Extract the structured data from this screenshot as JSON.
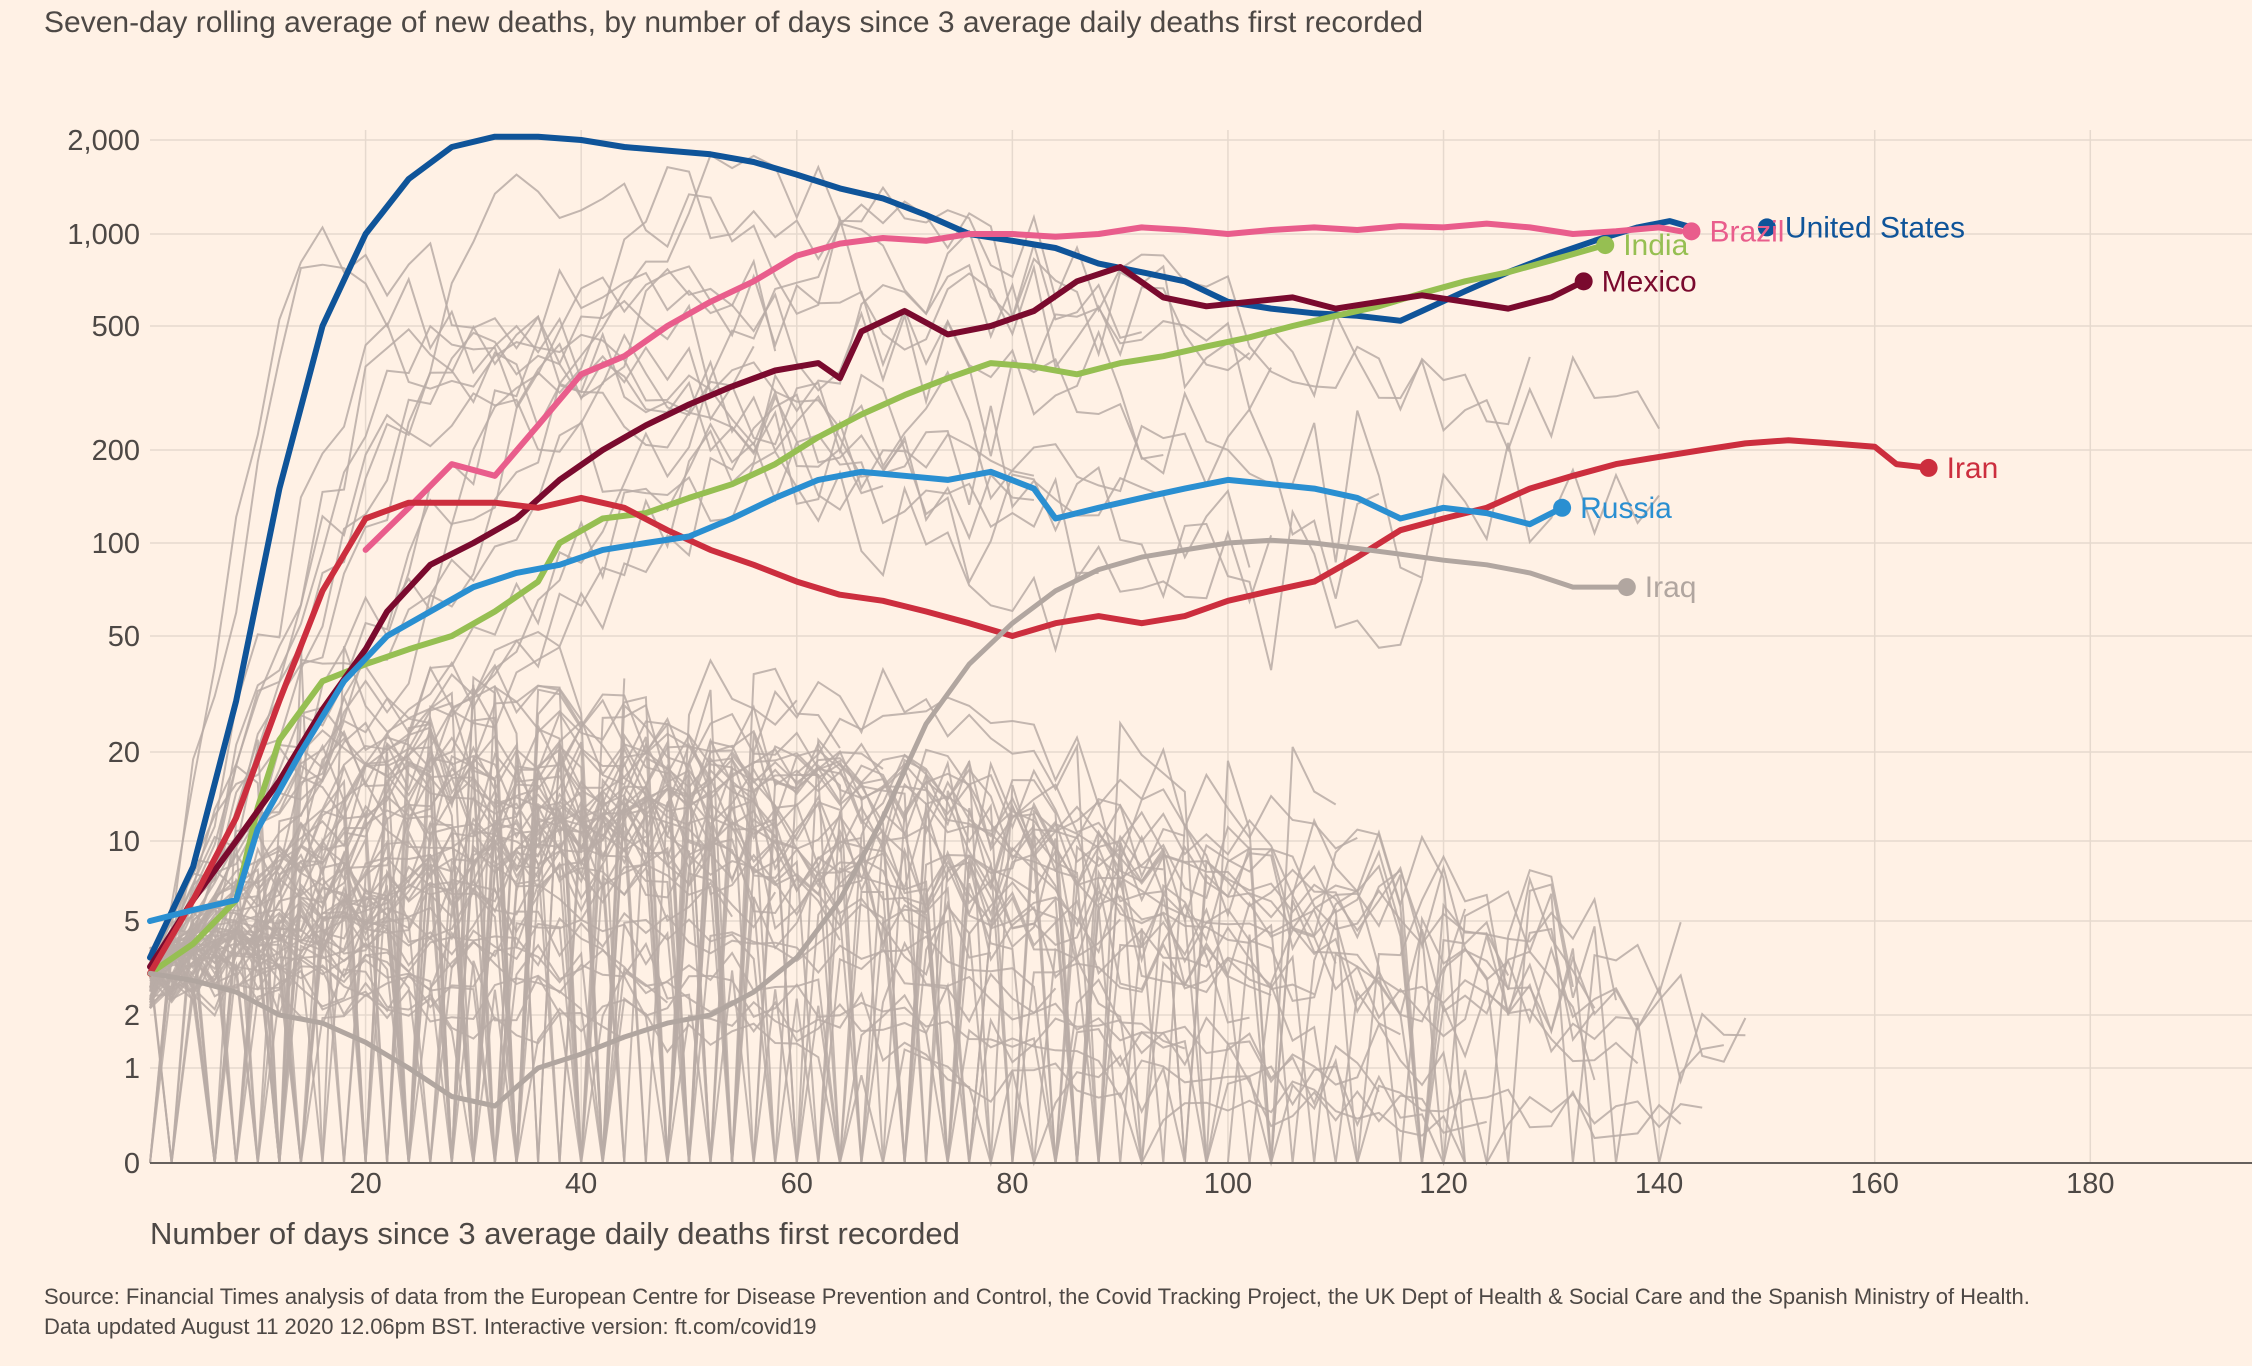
{
  "subtitle": "Seven-day rolling average of new deaths, by number of days since 3 average daily deaths first recorded",
  "source": {
    "line1": "Source: Financial Times analysis of data from the European Centre for Disease Prevention and Control, the Covid Tracking Project, the UK Dept of Health & Social Care and the Spanish Ministry of Health.",
    "line2": "Data updated August 11 2020 12.06pm BST. Interactive version: ft.com/covid19"
  },
  "chart_data": {
    "type": "line",
    "title": "",
    "subtitle": "Seven-day rolling average of new deaths, by number of days since 3 average daily deaths first recorded",
    "xlabel": "Number of days since 3 average daily deaths first recorded",
    "ylabel": "",
    "x_scale": "linear",
    "y_scale": "symlog",
    "xlim": [
      0,
      195
    ],
    "x_ticks": [
      20,
      40,
      60,
      80,
      100,
      120,
      140,
      160,
      180
    ],
    "y_ticks": [
      {
        "value": 0,
        "label": "0"
      },
      {
        "value": 1,
        "label": "1"
      },
      {
        "value": 2,
        "label": "2"
      },
      {
        "value": 5,
        "label": "5"
      },
      {
        "value": 10,
        "label": "10"
      },
      {
        "value": 20,
        "label": "20"
      },
      {
        "value": 50,
        "label": "50"
      },
      {
        "value": 100,
        "label": "100"
      },
      {
        "value": 200,
        "label": "200"
      },
      {
        "value": 500,
        "label": "500"
      },
      {
        "value": 1000,
        "label": "1,000"
      },
      {
        "value": 2000,
        "label": "2,000"
      }
    ],
    "grid": true,
    "legend": "direct labels at line ends",
    "background_color": "#fff1e5",
    "other_countries_color": "#b8aca6",
    "series": [
      {
        "name": "United States",
        "color": "#0f5499",
        "points": [
          [
            0,
            3.5
          ],
          [
            4,
            8
          ],
          [
            8,
            30
          ],
          [
            12,
            150
          ],
          [
            16,
            500
          ],
          [
            20,
            1000
          ],
          [
            24,
            1500
          ],
          [
            28,
            1900
          ],
          [
            32,
            2050
          ],
          [
            36,
            2050
          ],
          [
            40,
            2000
          ],
          [
            44,
            1900
          ],
          [
            48,
            1850
          ],
          [
            52,
            1800
          ],
          [
            56,
            1700
          ],
          [
            60,
            1550
          ],
          [
            64,
            1400
          ],
          [
            68,
            1300
          ],
          [
            72,
            1150
          ],
          [
            76,
            1000
          ],
          [
            80,
            950
          ],
          [
            84,
            900
          ],
          [
            88,
            800
          ],
          [
            92,
            750
          ],
          [
            96,
            700
          ],
          [
            100,
            600
          ],
          [
            104,
            570
          ],
          [
            108,
            550
          ],
          [
            112,
            540
          ],
          [
            116,
            520
          ],
          [
            118,
            560
          ],
          [
            122,
            650
          ],
          [
            126,
            750
          ],
          [
            130,
            850
          ],
          [
            134,
            950
          ],
          [
            138,
            1050
          ],
          [
            141,
            1100
          ],
          [
            143,
            1050
          ]
        ],
        "label_x": 150
      },
      {
        "name": "Brazil",
        "color": "#e95d8c",
        "points": [
          [
            20,
            95
          ],
          [
            24,
            130
          ],
          [
            28,
            180
          ],
          [
            32,
            165
          ],
          [
            36,
            240
          ],
          [
            40,
            350
          ],
          [
            44,
            400
          ],
          [
            48,
            500
          ],
          [
            52,
            600
          ],
          [
            56,
            700
          ],
          [
            60,
            850
          ],
          [
            64,
            930
          ],
          [
            68,
            970
          ],
          [
            72,
            950
          ],
          [
            76,
            1000
          ],
          [
            80,
            1000
          ],
          [
            84,
            980
          ],
          [
            88,
            1000
          ],
          [
            92,
            1050
          ],
          [
            96,
            1030
          ],
          [
            100,
            1000
          ],
          [
            104,
            1030
          ],
          [
            108,
            1050
          ],
          [
            112,
            1030
          ],
          [
            116,
            1060
          ],
          [
            120,
            1050
          ],
          [
            124,
            1080
          ],
          [
            128,
            1050
          ],
          [
            132,
            1000
          ],
          [
            136,
            1020
          ],
          [
            140,
            1050
          ],
          [
            142,
            1020
          ]
        ],
        "label_x": 143
      },
      {
        "name": "India",
        "color": "#96bf52",
        "points": [
          [
            0,
            3
          ],
          [
            4,
            4
          ],
          [
            8,
            6
          ],
          [
            10,
            13
          ],
          [
            12,
            22
          ],
          [
            16,
            35
          ],
          [
            20,
            40
          ],
          [
            24,
            45
          ],
          [
            28,
            50
          ],
          [
            32,
            60
          ],
          [
            36,
            75
          ],
          [
            38,
            100
          ],
          [
            42,
            120
          ],
          [
            46,
            125
          ],
          [
            50,
            140
          ],
          [
            54,
            155
          ],
          [
            58,
            180
          ],
          [
            62,
            220
          ],
          [
            66,
            260
          ],
          [
            70,
            300
          ],
          [
            74,
            340
          ],
          [
            78,
            380
          ],
          [
            82,
            370
          ],
          [
            86,
            350
          ],
          [
            90,
            380
          ],
          [
            94,
            400
          ],
          [
            98,
            430
          ],
          [
            102,
            460
          ],
          [
            106,
            500
          ],
          [
            110,
            540
          ],
          [
            114,
            580
          ],
          [
            118,
            640
          ],
          [
            122,
            700
          ],
          [
            126,
            750
          ],
          [
            130,
            820
          ],
          [
            134,
            900
          ],
          [
            135,
            920
          ]
        ],
        "label_x": 135
      },
      {
        "name": "Mexico",
        "color": "#7a0a2e",
        "points": [
          [
            0,
            3.2
          ],
          [
            4,
            6
          ],
          [
            8,
            10
          ],
          [
            12,
            16
          ],
          [
            16,
            28
          ],
          [
            20,
            45
          ],
          [
            22,
            60
          ],
          [
            26,
            85
          ],
          [
            30,
            100
          ],
          [
            34,
            120
          ],
          [
            38,
            160
          ],
          [
            42,
            200
          ],
          [
            46,
            240
          ],
          [
            50,
            280
          ],
          [
            54,
            320
          ],
          [
            58,
            360
          ],
          [
            62,
            380
          ],
          [
            64,
            340
          ],
          [
            66,
            480
          ],
          [
            70,
            560
          ],
          [
            74,
            470
          ],
          [
            78,
            500
          ],
          [
            82,
            560
          ],
          [
            86,
            700
          ],
          [
            90,
            780
          ],
          [
            94,
            620
          ],
          [
            98,
            580
          ],
          [
            102,
            600
          ],
          [
            106,
            620
          ],
          [
            110,
            570
          ],
          [
            114,
            600
          ],
          [
            118,
            630
          ],
          [
            122,
            600
          ],
          [
            126,
            570
          ],
          [
            130,
            620
          ],
          [
            133,
            700
          ]
        ],
        "label_x": 133
      },
      {
        "name": "Iran",
        "color": "#cc2e3e",
        "points": [
          [
            0,
            3
          ],
          [
            4,
            6
          ],
          [
            8,
            12
          ],
          [
            12,
            30
          ],
          [
            16,
            70
          ],
          [
            20,
            120
          ],
          [
            24,
            135
          ],
          [
            28,
            135
          ],
          [
            32,
            135
          ],
          [
            36,
            130
          ],
          [
            40,
            140
          ],
          [
            44,
            130
          ],
          [
            48,
            110
          ],
          [
            52,
            95
          ],
          [
            56,
            85
          ],
          [
            60,
            75
          ],
          [
            64,
            68
          ],
          [
            68,
            65
          ],
          [
            72,
            60
          ],
          [
            76,
            55
          ],
          [
            80,
            50
          ],
          [
            84,
            55
          ],
          [
            88,
            58
          ],
          [
            92,
            55
          ],
          [
            96,
            58
          ],
          [
            100,
            65
          ],
          [
            104,
            70
          ],
          [
            108,
            75
          ],
          [
            112,
            90
          ],
          [
            116,
            110
          ],
          [
            120,
            120
          ],
          [
            124,
            130
          ],
          [
            128,
            150
          ],
          [
            132,
            165
          ],
          [
            136,
            180
          ],
          [
            140,
            190
          ],
          [
            144,
            200
          ],
          [
            148,
            210
          ],
          [
            152,
            215
          ],
          [
            156,
            210
          ],
          [
            160,
            205
          ],
          [
            162,
            180
          ],
          [
            165,
            175
          ]
        ],
        "label_x": 165
      },
      {
        "name": "Russia",
        "color": "#2a8fd1",
        "points": [
          [
            0,
            5
          ],
          [
            4,
            5.5
          ],
          [
            8,
            6
          ],
          [
            10,
            11
          ],
          [
            14,
            20
          ],
          [
            18,
            35
          ],
          [
            22,
            50
          ],
          [
            26,
            60
          ],
          [
            30,
            72
          ],
          [
            34,
            80
          ],
          [
            38,
            85
          ],
          [
            42,
            95
          ],
          [
            46,
            100
          ],
          [
            50,
            105
          ],
          [
            54,
            120
          ],
          [
            58,
            140
          ],
          [
            62,
            160
          ],
          [
            66,
            170
          ],
          [
            70,
            165
          ],
          [
            74,
            160
          ],
          [
            78,
            170
          ],
          [
            82,
            150
          ],
          [
            84,
            120
          ],
          [
            88,
            130
          ],
          [
            92,
            140
          ],
          [
            96,
            150
          ],
          [
            100,
            160
          ],
          [
            104,
            155
          ],
          [
            108,
            150
          ],
          [
            112,
            140
          ],
          [
            116,
            120
          ],
          [
            120,
            130
          ],
          [
            124,
            125
          ],
          [
            128,
            115
          ],
          [
            131,
            130
          ]
        ],
        "label_x": 131
      },
      {
        "name": "Iraq",
        "color": "#b1a6a0",
        "points": [
          [
            0,
            3
          ],
          [
            4,
            2.8
          ],
          [
            8,
            2.5
          ],
          [
            12,
            2
          ],
          [
            16,
            1.8
          ],
          [
            20,
            1.4
          ],
          [
            24,
            1
          ],
          [
            28,
            0.7
          ],
          [
            32,
            0.6
          ],
          [
            36,
            1
          ],
          [
            40,
            1.2
          ],
          [
            44,
            1.5
          ],
          [
            48,
            1.8
          ],
          [
            52,
            2
          ],
          [
            56,
            2.5
          ],
          [
            60,
            3.5
          ],
          [
            64,
            6
          ],
          [
            68,
            12
          ],
          [
            72,
            25
          ],
          [
            76,
            40
          ],
          [
            80,
            55
          ],
          [
            84,
            70
          ],
          [
            88,
            82
          ],
          [
            92,
            90
          ],
          [
            96,
            95
          ],
          [
            100,
            100
          ],
          [
            104,
            102
          ],
          [
            108,
            100
          ],
          [
            112,
            96
          ],
          [
            116,
            92
          ],
          [
            120,
            88
          ],
          [
            124,
            85
          ],
          [
            128,
            80
          ],
          [
            132,
            72
          ],
          [
            137,
            72
          ]
        ],
        "label_x": 137
      }
    ]
  }
}
